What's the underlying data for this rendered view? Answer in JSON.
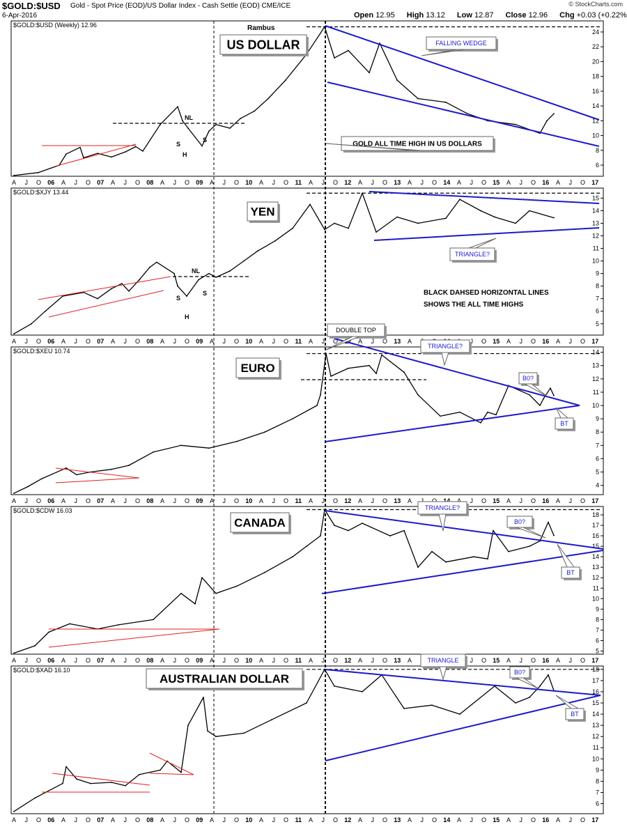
{
  "header": {
    "symbol": "$GOLD:$USD",
    "description": "Gold - Spot Price (EOD)/US Dollar Index - Cash Settle (EOD)  CME/ICE",
    "date": "6-Apr-2016",
    "open_label": "Open",
    "open": "12.95",
    "high_label": "High",
    "high": "13.12",
    "low_label": "Low",
    "low": "12.87",
    "close_label": "Close",
    "close": "12.96",
    "chg_label": "Chg",
    "chg": "+0.03 (+0.22%)",
    "logo": "© StockCharts.com",
    "author": "Rambus"
  },
  "colors": {
    "price": "#000000",
    "trendline": "#1a1acc",
    "red_line": "#e02020",
    "label_text": "#1a1acc",
    "grid_dash": "#000000"
  },
  "x_axis": {
    "labels": [
      "A",
      "J",
      "O",
      "06",
      "A",
      "J",
      "O",
      "07",
      "A",
      "J",
      "O",
      "08",
      "A",
      "J",
      "O",
      "09",
      "A",
      "J",
      "O",
      "10",
      "A",
      "J",
      "O",
      "11",
      "A",
      "J",
      "O",
      "12",
      "A",
      "J",
      "O",
      "13",
      "A",
      "J",
      "O",
      "14",
      "A",
      "J",
      "O",
      "15",
      "A",
      "J",
      "O",
      "16",
      "A",
      "J",
      "O",
      "17"
    ],
    "year_labels": [
      "06",
      "07",
      "08",
      "09",
      "10",
      "11",
      "12",
      "13",
      "14",
      "15",
      "16",
      "17"
    ]
  },
  "chart_data": [
    {
      "type": "line",
      "title": "$GOLD:$USD (Weekly) 12.96",
      "panel_label": "US DOLLAR",
      "ylim": [
        4.5,
        25.5
      ],
      "yticks": [
        6,
        8,
        10,
        12,
        14,
        16,
        18,
        20,
        22,
        24
      ],
      "all_time_high": 24.7,
      "series": [
        {
          "values": [
            4.6,
            5.0,
            6.0,
            7.5,
            8.4,
            7.0,
            7.6,
            7.1,
            7.8,
            8.5,
            7.9,
            11.5,
            13.9,
            12.0,
            11.0,
            8.6,
            10.6,
            11.5,
            11.0,
            12.3,
            13.3,
            15.0,
            17.5,
            21.0,
            24.7,
            20.5,
            21.5,
            18.5,
            22.5,
            17.5,
            15.0,
            14.5,
            13.0,
            12.0,
            11.5,
            10.3,
            12.0,
            12.96
          ]
        }
      ],
      "trendlines": [
        {
          "label": "FALLING WEDGE"
        }
      ],
      "annotations": [
        "FALLING WEDGE",
        "GOLD ALL TIME HIGH IN US DOLLARS"
      ],
      "pattern_marks": [
        "NL",
        "S",
        "H",
        "S"
      ]
    },
    {
      "type": "line",
      "title": "$GOLD:$XJY 13.44",
      "panel_label": "YEN",
      "ylim": [
        4.1,
        15.8
      ],
      "yticks": [
        5,
        6,
        7,
        8,
        9,
        10,
        11,
        12,
        13,
        14,
        15
      ],
      "all_time_high": 15.4,
      "series": [
        {
          "values": [
            4.2,
            5.0,
            6.0,
            7.2,
            7.5,
            7.0,
            7.8,
            8.2,
            7.6,
            8.5,
            9.5,
            9.9,
            9.0,
            8.0,
            7.2,
            8.5,
            9.0,
            8.7,
            9.2,
            10.0,
            10.8,
            11.6,
            12.6,
            14.5,
            12.5,
            13.0,
            12.6,
            15.4,
            12.3,
            13.5,
            13.0,
            13.4,
            14.9,
            14.0,
            13.5,
            13.0,
            14.0,
            13.44
          ]
        }
      ],
      "annotations": [
        "TRIANGLE?",
        "BLACK DAHSED HORIZONTAL LINES",
        "SHOWS THE ALL TIME HIGHS"
      ],
      "pattern_marks": [
        "NL",
        "S",
        "H",
        "S"
      ]
    },
    {
      "type": "line",
      "title": "$GOLD:$XEU 10.74",
      "panel_label": "EURO",
      "ylim": [
        3.3,
        14.4
      ],
      "yticks": [
        4,
        5,
        6,
        7,
        8,
        9,
        10,
        11,
        12,
        13,
        14
      ],
      "all_time_high": 13.9,
      "series": [
        {
          "values": [
            3.4,
            3.9,
            4.5,
            5.3,
            4.8,
            5.0,
            5.2,
            5.5,
            6.5,
            7.0,
            6.8,
            7.3,
            8.0,
            9.0,
            10.0,
            10.8,
            13.9,
            12.2,
            12.8,
            13.0,
            12.4,
            13.8,
            12.5,
            10.8,
            9.2,
            9.5,
            8.7,
            9.5,
            9.3,
            11.5,
            10.8,
            10.0,
            10.5,
            11.3,
            10.74
          ]
        }
      ],
      "annotations": [
        "DOUBLE TOP",
        "TRIANGLE?",
        "B0?",
        "BT"
      ]
    },
    {
      "type": "line",
      "title": "$GOLD:$CDW 16.03",
      "panel_label": "CANADA",
      "ylim": [
        4.7,
        18.8
      ],
      "yticks": [
        5,
        6,
        7,
        8,
        9,
        10,
        11,
        12,
        13,
        14,
        15,
        16,
        17,
        18
      ],
      "all_time_high": 18.5,
      "series": [
        {
          "values": [
            4.8,
            5.5,
            6.8,
            7.6,
            7.1,
            7.5,
            8.0,
            10.5,
            9.5,
            12.0,
            10.5,
            11.2,
            12.5,
            14.0,
            15.0,
            16.0,
            18.5,
            17.0,
            16.5,
            17.2,
            16.0,
            16.5,
            13.0,
            14.5,
            13.5,
            14.0,
            13.8,
            16.5,
            14.5,
            15.0,
            15.5,
            17.3,
            16.03
          ]
        }
      ],
      "annotations": [
        "TRIANGLE?",
        "B0?",
        "BT"
      ]
    },
    {
      "type": "line",
      "title": "$GOLD:$XAD 16.10",
      "panel_label": "AUSTRALIAN DOLLAR",
      "ylim": [
        5.1,
        18.3
      ],
      "yticks": [
        6,
        7,
        8,
        9,
        10,
        11,
        12,
        13,
        14,
        15,
        16,
        17,
        18
      ],
      "all_time_high": 18.0,
      "series": [
        {
          "values": [
            5.3,
            6.5,
            7.8,
            9.3,
            8.2,
            7.8,
            7.9,
            7.6,
            8.6,
            9.0,
            9.8,
            8.8,
            13.0,
            15.5,
            12.5,
            12.0,
            12.3,
            13.5,
            15.0,
            18.0,
            16.5,
            16.0,
            17.5,
            14.5,
            14.8,
            14.0,
            16.5,
            15.0,
            15.5,
            16.5,
            17.5,
            16.1
          ]
        }
      ],
      "annotations": [
        "TRIANGLE",
        "B0?",
        "BT"
      ]
    }
  ]
}
